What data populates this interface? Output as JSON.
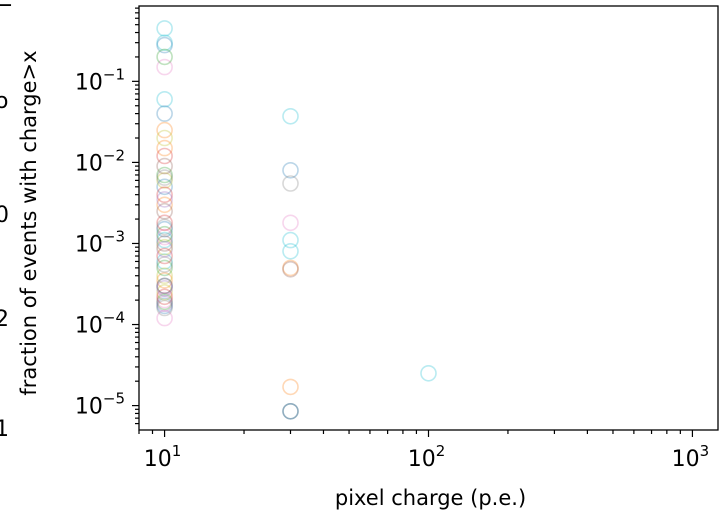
{
  "chart_data": {
    "type": "scatter",
    "title": "",
    "xlabel": "pixel charge (p.e.)",
    "ylabel": "fraction of events with charge>x",
    "xscale": "log",
    "yscale": "log",
    "xlim": [
      8,
      1250
    ],
    "ylim": [
      5e-06,
      0.85
    ],
    "x_ticks": [
      {
        "value": 10,
        "base": "10",
        "exp": "1"
      },
      {
        "value": 100,
        "base": "10",
        "exp": "2"
      },
      {
        "value": 1000,
        "base": "10",
        "exp": "3"
      }
    ],
    "y_ticks": [
      {
        "value": 0.1,
        "base": "10",
        "exp": "−1"
      },
      {
        "value": 0.01,
        "base": "10",
        "exp": "−2"
      },
      {
        "value": 0.001,
        "base": "10",
        "exp": "−3"
      },
      {
        "value": 0.0001,
        "base": "10",
        "exp": "−4"
      },
      {
        "value": 1e-05,
        "base": "10",
        "exp": "−5"
      }
    ],
    "grid": false,
    "legend": "none",
    "marker": "hollow circle",
    "marker_alpha": 0.3,
    "clipped_left_edge_text": [
      "−",
      "o",
      "0",
      "2",
      "1"
    ],
    "series": [
      {
        "color": "#17becf",
        "points": [
          [
            10,
            0.45
          ],
          [
            10,
            0.3
          ],
          [
            10,
            0.06
          ],
          [
            10,
            0.0011
          ],
          [
            10,
            0.0006
          ],
          [
            30,
            0.037
          ],
          [
            30,
            0.0011
          ],
          [
            30,
            0.0008
          ],
          [
            100,
            2.5e-05
          ]
        ]
      },
      {
        "color": "#1f77b4",
        "points": [
          [
            10,
            0.28
          ],
          [
            10,
            0.04
          ],
          [
            10,
            0.005
          ],
          [
            10,
            0.0015
          ],
          [
            10,
            0.0003
          ],
          [
            10,
            0.00017
          ],
          [
            30,
            0.008
          ],
          [
            30,
            8.5e-06
          ]
        ]
      },
      {
        "color": "#e377c2",
        "points": [
          [
            10,
            0.15
          ],
          [
            10,
            0.0012
          ],
          [
            10,
            0.0002
          ],
          [
            10,
            0.00012
          ],
          [
            30,
            0.0018
          ]
        ]
      },
      {
        "color": "#ff7f0e",
        "points": [
          [
            10,
            0.025
          ],
          [
            10,
            0.015
          ],
          [
            10,
            0.003
          ],
          [
            10,
            0.00035
          ],
          [
            30,
            0.0005
          ],
          [
            30,
            1.7e-05
          ]
        ]
      },
      {
        "color": "#bcbd22",
        "points": [
          [
            10,
            0.02
          ],
          [
            10,
            0.006
          ],
          [
            10,
            0.0009
          ],
          [
            10,
            0.0004
          ],
          [
            10,
            0.00025
          ]
        ]
      },
      {
        "color": "#2ca02c",
        "points": [
          [
            10,
            0.2
          ],
          [
            10,
            0.007
          ],
          [
            10,
            0.0013
          ],
          [
            10,
            0.0005
          ],
          [
            10,
            0.00019
          ]
        ]
      },
      {
        "color": "#d62728",
        "points": [
          [
            10,
            0.012
          ],
          [
            10,
            0.004
          ],
          [
            10,
            0.0018
          ],
          [
            10,
            0.0007
          ],
          [
            10,
            0.00022
          ]
        ]
      },
      {
        "color": "#8c564b",
        "points": [
          [
            10,
            0.009
          ],
          [
            10,
            0.0025
          ],
          [
            10,
            0.001
          ],
          [
            10,
            0.0003
          ],
          [
            30,
            0.00048
          ]
        ]
      },
      {
        "color": "#7f7f7f",
        "points": [
          [
            10,
            0.0065
          ],
          [
            10,
            0.0016
          ],
          [
            10,
            0.00055
          ],
          [
            10,
            0.00016
          ],
          [
            30,
            0.0055
          ]
        ]
      },
      {
        "color": "#9467bd",
        "points": [
          [
            10,
            0.0035
          ],
          [
            10,
            0.00085
          ],
          [
            10,
            0.00028
          ],
          [
            10,
            0.00018
          ]
        ]
      },
      {
        "color": "#2f4f5f",
        "points": [
          [
            30,
            8.5e-06
          ]
        ]
      }
    ]
  }
}
